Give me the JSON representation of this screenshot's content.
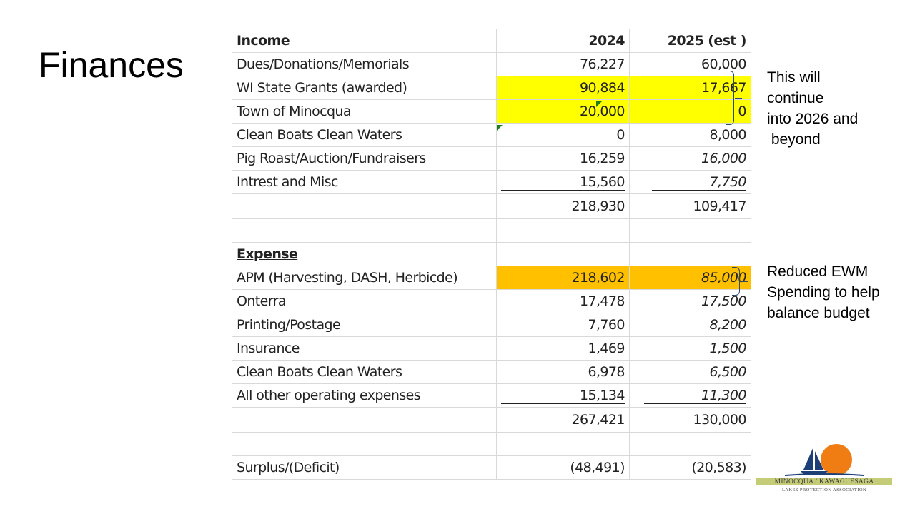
{
  "slide": {
    "title": "Finances"
  },
  "table": {
    "income_header": {
      "label": "Income",
      "y2024": "2024",
      "y2025": "2025 (est )"
    },
    "income_rows": [
      {
        "label": "Dues/Donations/Memorials",
        "y2024": "76,227",
        "y2025": "60,000"
      },
      {
        "label": "WI State Grants (awarded)",
        "y2024": "90,884",
        "y2025": "17,667"
      },
      {
        "label": "Town of Minocqua",
        "y2024": "20,000",
        "y2025": "0"
      },
      {
        "label": "Clean Boats Clean Waters",
        "y2024": "0",
        "y2025": "8,000"
      },
      {
        "label": "Pig Roast/Auction/Fundraisers",
        "y2024": "16,259",
        "y2025": "16,000"
      },
      {
        "label": "Intrest and Misc",
        "y2024": "15,560",
        "y2025": "7,750"
      }
    ],
    "income_total": {
      "y2024": "218,930",
      "y2025": "109,417"
    },
    "expense_header": {
      "label": "Expense"
    },
    "expense_rows": [
      {
        "label": "APM (Harvesting, DASH, Herbicde)",
        "y2024": "218,602",
        "y2025": "85,000"
      },
      {
        "label": "Onterra",
        "y2024": "17,478",
        "y2025": "17,500"
      },
      {
        "label": "Printing/Postage",
        "y2024": "7,760",
        "y2025": "8,200"
      },
      {
        "label": "Insurance",
        "y2024": "1,469",
        "y2025": "1,500"
      },
      {
        "label": "Clean Boats Clean Waters",
        "y2024": "6,978",
        "y2025": "6,500"
      },
      {
        "label": "All other operating expenses",
        "y2024": "15,134",
        "y2025": "11,300"
      }
    ],
    "expense_total": {
      "y2024": "267,421",
      "y2025": "130,000"
    },
    "surplus": {
      "label": "Surplus/(Deficit)",
      "y2024": "(48,491)",
      "y2025": "(20,583)"
    },
    "colors": {
      "grant_highlight": "#ffff00",
      "apm_highlight": "#ffc000"
    }
  },
  "notes": {
    "grants_note": "This will\ncontinue\ninto 2026 and\n beyond",
    "ewm_note": "Reduced EWM\nSpending to help\nbalance budget"
  },
  "logo": {
    "line1": "MINOCQUA / KAWAGUESAGA",
    "line2": "LAKES PROTECTION ASSOCIATION"
  }
}
